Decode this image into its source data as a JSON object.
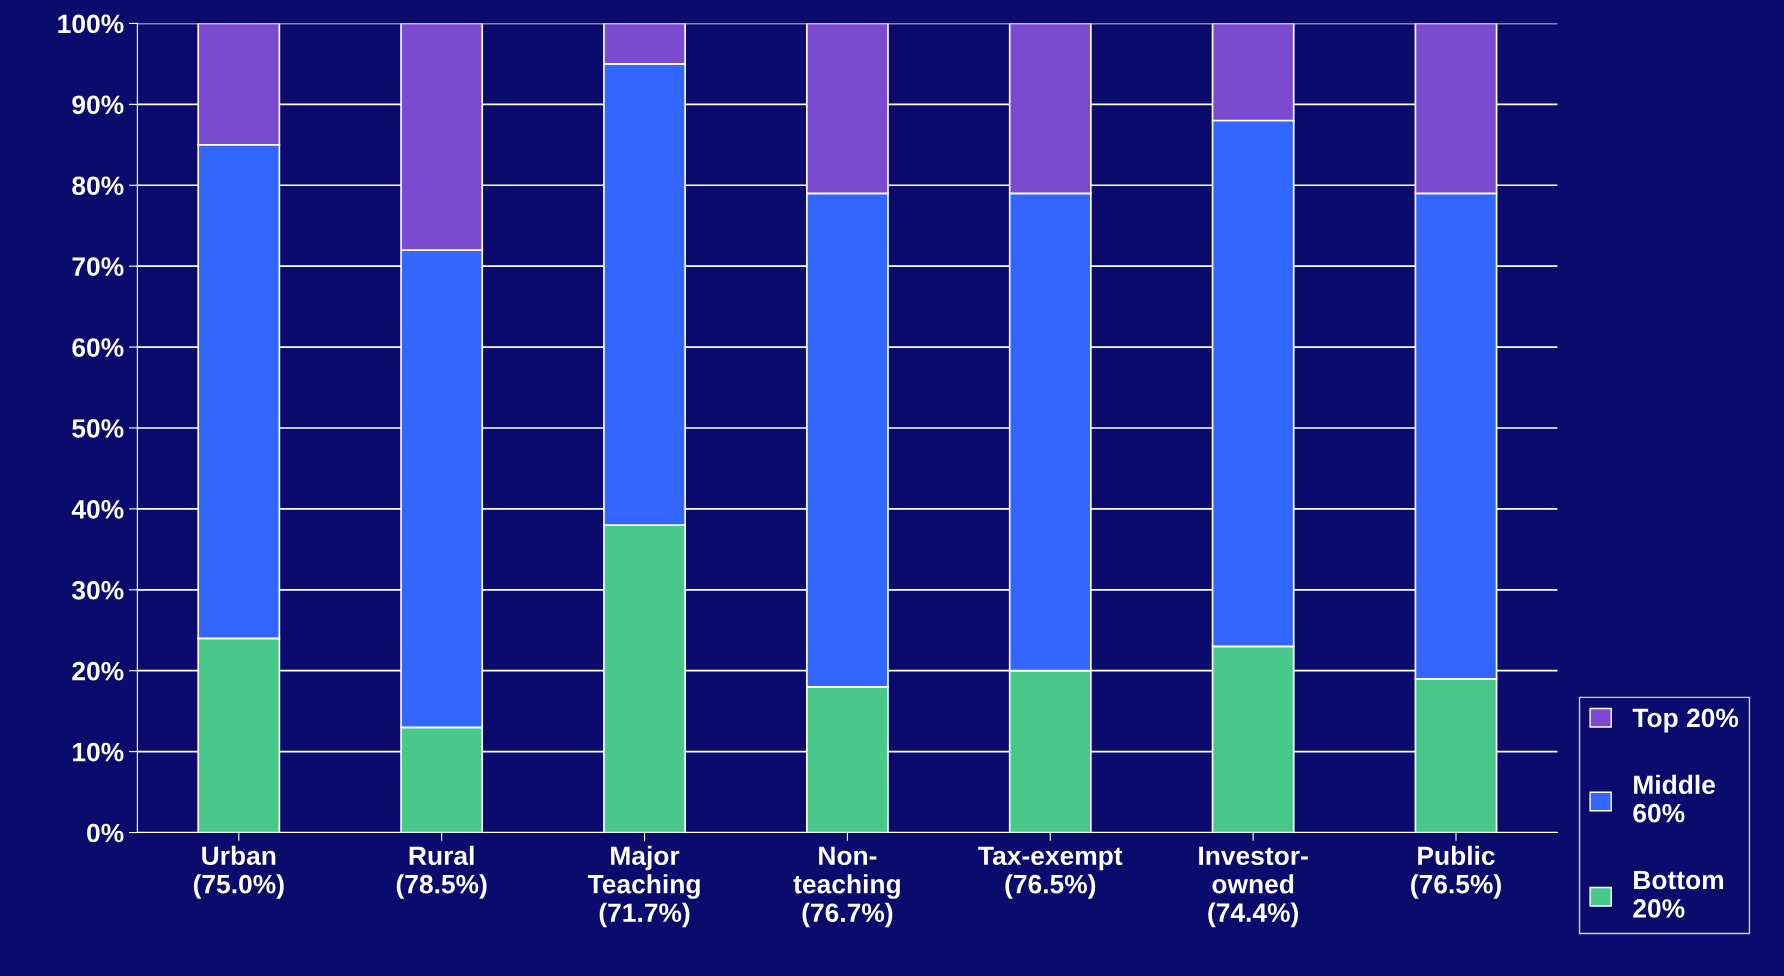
{
  "chart_data": {
    "type": "bar",
    "stacked": true,
    "categories": [
      "Urban\n(75.0%)",
      "Rural\n(78.5%)",
      "Major\nTeaching\n(71.7%)",
      "Non-\nteaching\n(76.7%)",
      "Tax-exempt\n(76.5%)",
      "Investor-\nowned\n(74.4%)",
      "Public\n(76.5%)"
    ],
    "series": [
      {
        "name": "Bottom\n20%",
        "color": "#48c98a",
        "values": [
          24,
          13,
          38,
          18,
          20,
          23,
          19
        ]
      },
      {
        "name": "Middle\n60%",
        "color": "#3366ff",
        "values": [
          61,
          59,
          57,
          61,
          59,
          65,
          60
        ]
      },
      {
        "name": "Top 20%",
        "color": "#7b4ad0",
        "values": [
          15,
          28,
          5,
          21,
          21,
          12,
          21
        ]
      }
    ],
    "ylim": [
      0,
      100
    ],
    "yticks": [
      {
        "value": 0,
        "label": "0%"
      },
      {
        "value": 10,
        "label": "10%"
      },
      {
        "value": 20,
        "label": "20%"
      },
      {
        "value": 30,
        "label": "30%"
      },
      {
        "value": 40,
        "label": "40%"
      },
      {
        "value": 50,
        "label": "50%"
      },
      {
        "value": 60,
        "label": "60%"
      },
      {
        "value": 70,
        "label": "70%"
      },
      {
        "value": 80,
        "label": "80%"
      },
      {
        "value": 90,
        "label": "90%"
      },
      {
        "value": 100,
        "label": "100%"
      }
    ],
    "grid": "y",
    "legend": "bottom right"
  }
}
